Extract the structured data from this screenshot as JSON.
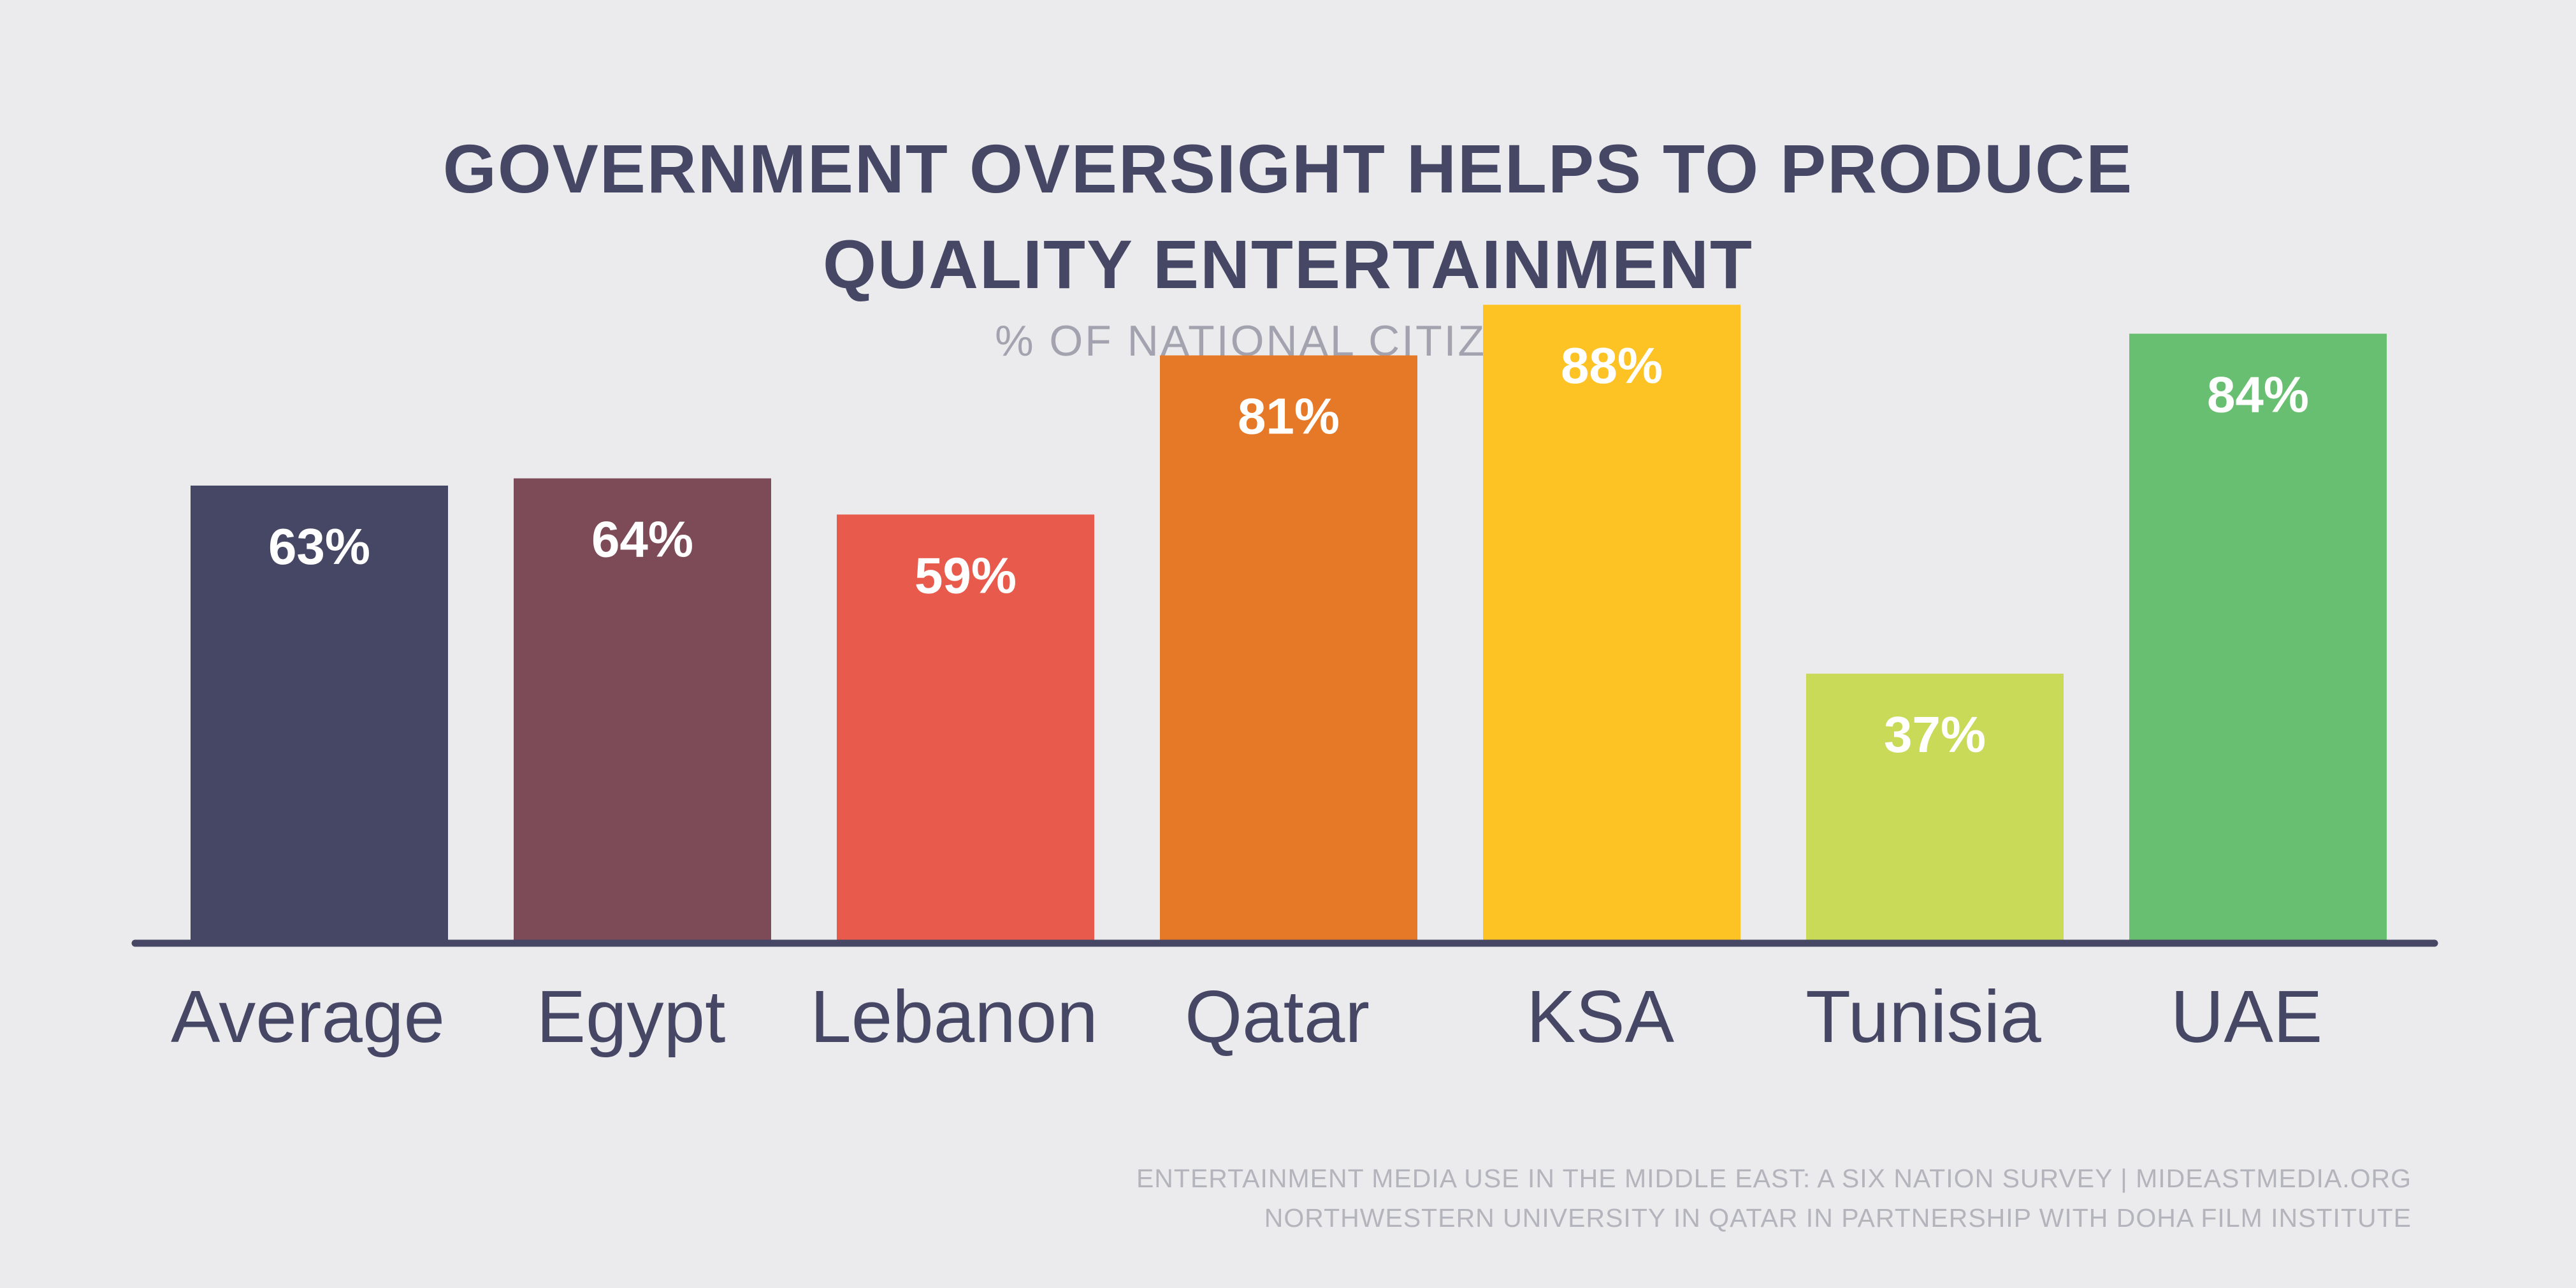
{
  "chart_data": {
    "type": "bar",
    "title": "GOVERNMENT OVERSIGHT HELPS TO PRODUCE QUALITY ENTERTAINMENT",
    "subtitle": "% OF NATIONAL CITIZENS",
    "categories": [
      "Average",
      "Egypt",
      "Lebanon",
      "Qatar",
      "KSA",
      "Tunisia",
      "UAE"
    ],
    "values": [
      63,
      64,
      59,
      81,
      88,
      37,
      84
    ],
    "value_labels": [
      "63%",
      "64%",
      "59%",
      "81%",
      "88%",
      "37%",
      "84%"
    ],
    "colors": [
      "#464764",
      "#7d4a57",
      "#e85a4c",
      "#e67927",
      "#fdc325",
      "#c9da58",
      "#68bf71"
    ],
    "axis_color": "#464764",
    "label_color": "#464764",
    "value_label_color": "#ffffff",
    "ylim": [
      0,
      100
    ],
    "grid": false,
    "legend": "none"
  },
  "footer": {
    "line1": "ENTERTAINMENT MEDIA USE IN THE MIDDLE EAST: A SIX NATION SURVEY | MIDEASTMEDIA.ORG",
    "line2": "NORTHWESTERN UNIVERSITY IN QATAR IN PARTNERSHIP WITH DOHA FILM INSTITUTE"
  }
}
